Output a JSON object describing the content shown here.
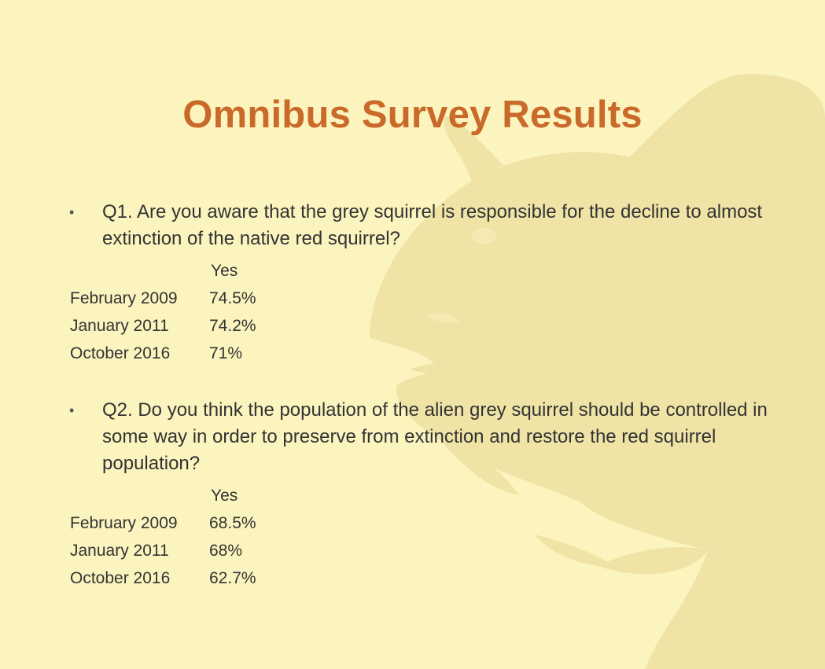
{
  "slide": {
    "title": "Omnibus Survey Results",
    "background_color": "#fcf4be",
    "title_color": "#c9692a",
    "watermark_icon": "squirrel-silhouette-icon"
  },
  "questions": [
    {
      "bullet": "•",
      "text": "Q1. Are you aware that the grey squirrel is responsible for the decline to almost extinction of the native red squirrel?",
      "column_header": "Yes",
      "rows": [
        {
          "label": "February 2009",
          "value": "74.5%"
        },
        {
          "label": "January 2011",
          "value": "74.2%"
        },
        {
          "label": "October 2016",
          "value": "71%"
        }
      ]
    },
    {
      "bullet": "•",
      "text": "Q2. Do you think the population of the alien grey squirrel should be controlled in some way in order to preserve from extinction and restore the red squirrel population?",
      "column_header": "Yes",
      "rows": [
        {
          "label": "February 2009",
          "value": "68.5%"
        },
        {
          "label": "January 2011",
          "value": "68%"
        },
        {
          "label": "October 2016",
          "value": "62.7%"
        }
      ]
    }
  ]
}
